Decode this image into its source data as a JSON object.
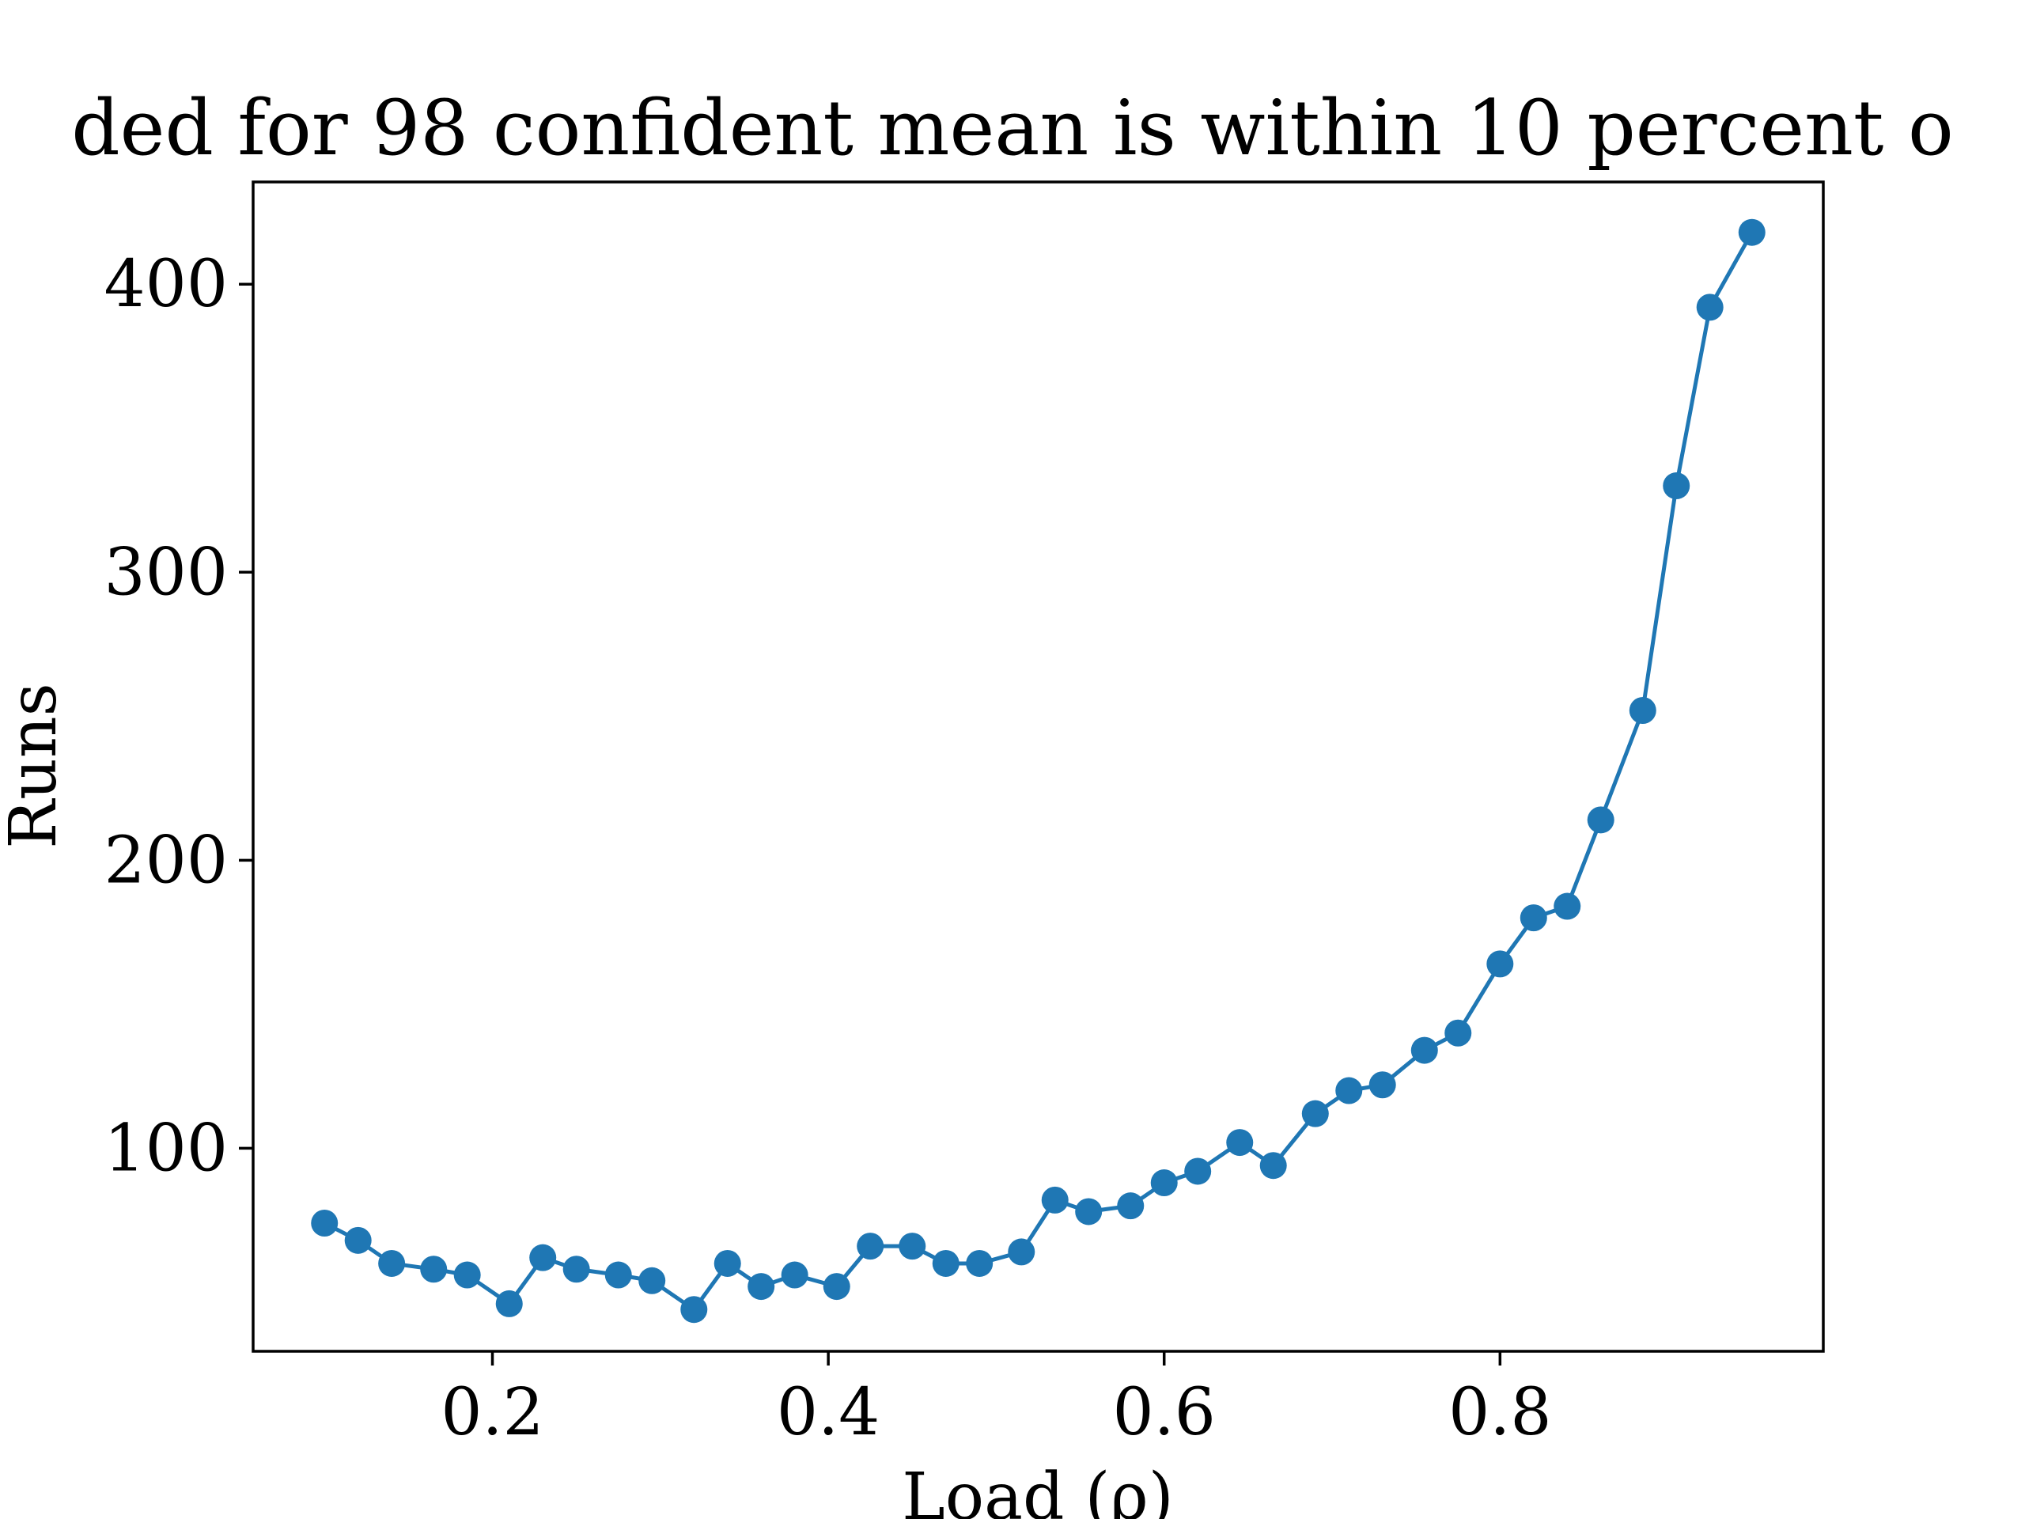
{
  "chart_data": {
    "type": "line",
    "title": "ded for 98 confident mean is within 10 percent o",
    "xlabel": "Load (ρ)",
    "ylabel": "Runs",
    "xlim": [
      0.0575,
      0.9925
    ],
    "ylim": [
      29.5,
      435.5
    ],
    "xticks": [
      0.2,
      0.4,
      0.6,
      0.8
    ],
    "xtick_labels": [
      "0.2",
      "0.4",
      "0.6",
      "0.8"
    ],
    "yticks": [
      100,
      200,
      300,
      400
    ],
    "ytick_labels": [
      "100",
      "200",
      "300",
      "400"
    ],
    "grid": false,
    "legend": "none",
    "line_color": "#1f77b4",
    "marker": "circle",
    "series": [
      {
        "x": [
          0.1,
          0.12,
          0.14,
          0.165,
          0.185,
          0.21,
          0.23,
          0.25,
          0.275,
          0.295,
          0.32,
          0.34,
          0.36,
          0.38,
          0.405,
          0.425,
          0.45,
          0.47,
          0.49,
          0.515,
          0.535,
          0.555,
          0.58,
          0.6,
          0.62,
          0.645,
          0.665,
          0.69,
          0.71,
          0.73,
          0.755,
          0.775,
          0.8,
          0.82,
          0.84,
          0.86,
          0.885,
          0.905,
          0.925,
          0.95
        ],
        "values": [
          74,
          68,
          60,
          58,
          56,
          46,
          62,
          58,
          56,
          54,
          44,
          60,
          52,
          56,
          52,
          66,
          66,
          60,
          60,
          64,
          82,
          78,
          80,
          88,
          92,
          102,
          94,
          112,
          120,
          122,
          134,
          140,
          164,
          180,
          184,
          214,
          252,
          330,
          392,
          418
        ]
      }
    ]
  }
}
